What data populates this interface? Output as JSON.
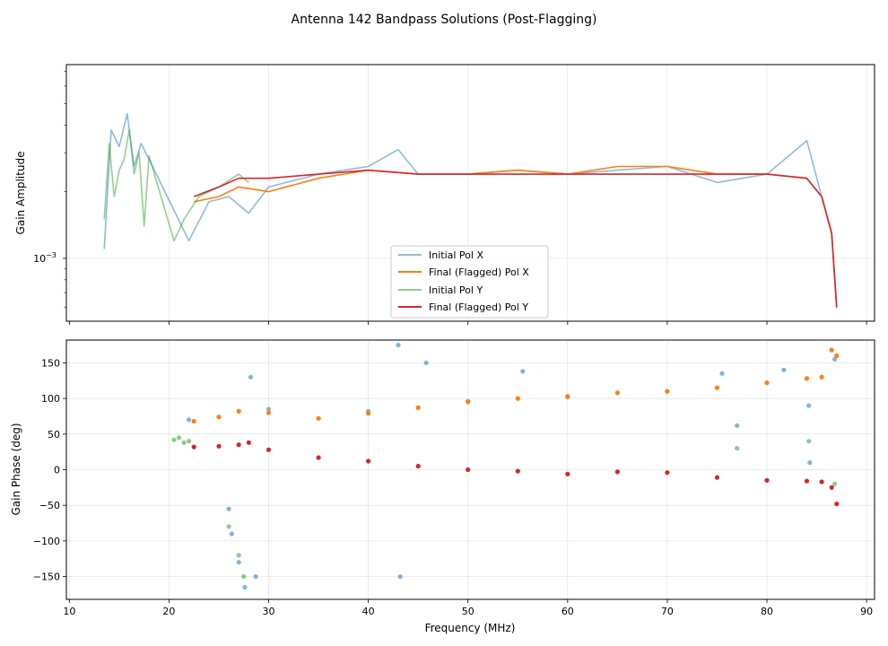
{
  "figure": {
    "title": "Antenna 142 Bandpass Solutions (Post-Flagging)"
  },
  "chart_data": [
    {
      "type": "line",
      "panel": "amplitude",
      "xlabel": "",
      "ylabel": "Gain Amplitude",
      "yscale": "log",
      "xlim": [
        9.7,
        90.8
      ],
      "ylim": [
        0.00052,
        0.0075
      ],
      "xticks": [
        10,
        20,
        30,
        40,
        50,
        60,
        70,
        80,
        90
      ],
      "yticks": [
        {
          "value": 0.001,
          "base": "10",
          "exp": "−3"
        }
      ],
      "grid": true,
      "legend": "lower-center",
      "series": [
        {
          "name": "Initial Pol X",
          "color": "#1f77b4",
          "opacity": 0.5,
          "x": [
            13.5,
            14.2,
            15.0,
            15.8,
            16.5,
            17.2,
            18.0,
            22.0,
            24.0,
            26.0,
            28.0,
            30.0,
            35.0,
            40.0,
            43.0,
            45.0,
            50.0,
            55.0,
            60.0,
            65.0,
            70.0,
            75.0,
            80.0,
            84.0,
            85.5,
            86.5,
            87.0
          ],
          "y": [
            0.0011,
            0.0038,
            0.0032,
            0.0045,
            0.0026,
            0.0033,
            0.0028,
            0.0012,
            0.0018,
            0.0019,
            0.0016,
            0.0021,
            0.0024,
            0.0026,
            0.0031,
            0.0024,
            0.0024,
            0.0025,
            0.0024,
            0.0025,
            0.0026,
            0.0022,
            0.0024,
            0.0034,
            0.0019,
            0.0013,
            0.0006
          ]
        },
        {
          "name": "Final (Flagged) Pol X",
          "color": "#ff7f0e",
          "opacity": 1.0,
          "x": [
            22.5,
            25.0,
            27.0,
            30.0,
            35.0,
            40.0,
            45.0,
            50.0,
            55.0,
            60.0,
            65.0,
            70.0,
            75.0,
            80.0,
            84.0,
            85.5,
            86.5,
            87.0
          ],
          "y": [
            0.0018,
            0.0019,
            0.0021,
            0.002,
            0.0023,
            0.0025,
            0.0024,
            0.0024,
            0.0025,
            0.0024,
            0.0026,
            0.0026,
            0.0024,
            0.0024,
            0.0023,
            0.0019,
            0.0013,
            0.0006
          ]
        },
        {
          "name": "Initial Pol Y",
          "color": "#2ca02c",
          "opacity": 0.5,
          "x": [
            13.5,
            14.0,
            14.5,
            15.0,
            15.5,
            16.0,
            16.5,
            17.0,
            17.5,
            18.0,
            20.5,
            21.5,
            23.0,
            25.0,
            27.0,
            28.0
          ],
          "y": [
            0.0015,
            0.0033,
            0.0019,
            0.0025,
            0.0028,
            0.0038,
            0.0024,
            0.003,
            0.0014,
            0.0029,
            0.0012,
            0.0015,
            0.0019,
            0.0021,
            0.0024,
            0.0022
          ]
        },
        {
          "name": "Final (Flagged) Pol Y",
          "color": "#d62728",
          "opacity": 1.0,
          "x": [
            22.5,
            25.0,
            27.0,
            30.0,
            35.0,
            40.0,
            45.0,
            50.0,
            55.0,
            60.0,
            65.0,
            70.0,
            75.0,
            80.0,
            84.0,
            85.5,
            86.5,
            87.0
          ],
          "y": [
            0.0019,
            0.0021,
            0.0023,
            0.0023,
            0.0024,
            0.0025,
            0.0024,
            0.0024,
            0.0024,
            0.0024,
            0.0024,
            0.0024,
            0.0024,
            0.0024,
            0.0023,
            0.0019,
            0.0013,
            0.0006
          ]
        }
      ]
    },
    {
      "type": "scatter",
      "panel": "phase",
      "xlabel": "Frequency (MHz)",
      "ylabel": "Gain Phase (deg)",
      "xlim": [
        9.7,
        90.8
      ],
      "ylim": [
        -182,
        182
      ],
      "xticks": [
        10,
        20,
        30,
        40,
        50,
        60,
        70,
        80,
        90
      ],
      "yticks": [
        -150,
        -100,
        -50,
        0,
        50,
        100,
        150
      ],
      "grid": true,
      "series": [
        {
          "name": "Initial Pol X",
          "color": "#1f77b4",
          "opacity": 0.55,
          "x": [
            22.0,
            30.0,
            40.0,
            43.0,
            43.2,
            45.8,
            50.0,
            55.5,
            60.0,
            70.0,
            75.5,
            77.0,
            81.7,
            84.2,
            84.3,
            86.8,
            26.0,
            26.3,
            27.0,
            27.6,
            28.2,
            28.7
          ],
          "y": [
            70,
            85,
            82,
            175,
            -150,
            150,
            95,
            138,
            102,
            110,
            135,
            62,
            140,
            90,
            10,
            155,
            -55,
            -90,
            -130,
            -165,
            130,
            -150
          ]
        },
        {
          "name": "Final (Flagged) Pol X",
          "color": "#ff7f0e",
          "opacity": 1.0,
          "x": [
            22.5,
            25.0,
            27.0,
            30.0,
            35.0,
            40.0,
            45.0,
            50.0,
            55.0,
            60.0,
            65.0,
            70.0,
            75.0,
            80.0,
            84.0,
            85.5,
            86.5,
            87.0
          ],
          "y": [
            68,
            74,
            82,
            80,
            72,
            79,
            87,
            96,
            100,
            103,
            108,
            110,
            115,
            122,
            128,
            130,
            168,
            160
          ]
        },
        {
          "name": "Initial Pol Y",
          "color": "#2ca02c",
          "opacity": 0.55,
          "x": [
            20.5,
            21.0,
            21.5,
            22.0,
            26.0,
            27.0,
            27.5,
            77.0,
            84.2,
            86.8
          ],
          "y": [
            42,
            45,
            38,
            40,
            -80,
            -120,
            -150,
            30,
            40,
            -20
          ]
        },
        {
          "name": "Final (Flagged) Pol Y",
          "color": "#d62728",
          "opacity": 1.0,
          "x": [
            22.5,
            25.0,
            27.0,
            28.0,
            30.0,
            35.0,
            40.0,
            45.0,
            50.0,
            55.0,
            60.0,
            65.0,
            70.0,
            75.0,
            80.0,
            84.0,
            85.5,
            86.5,
            87.0
          ],
          "y": [
            32,
            33,
            35,
            38,
            28,
            17,
            12,
            5,
            0,
            -2,
            -6,
            -3,
            -4,
            -11,
            -15,
            -16,
            -17,
            -25,
            -48
          ]
        }
      ]
    }
  ]
}
